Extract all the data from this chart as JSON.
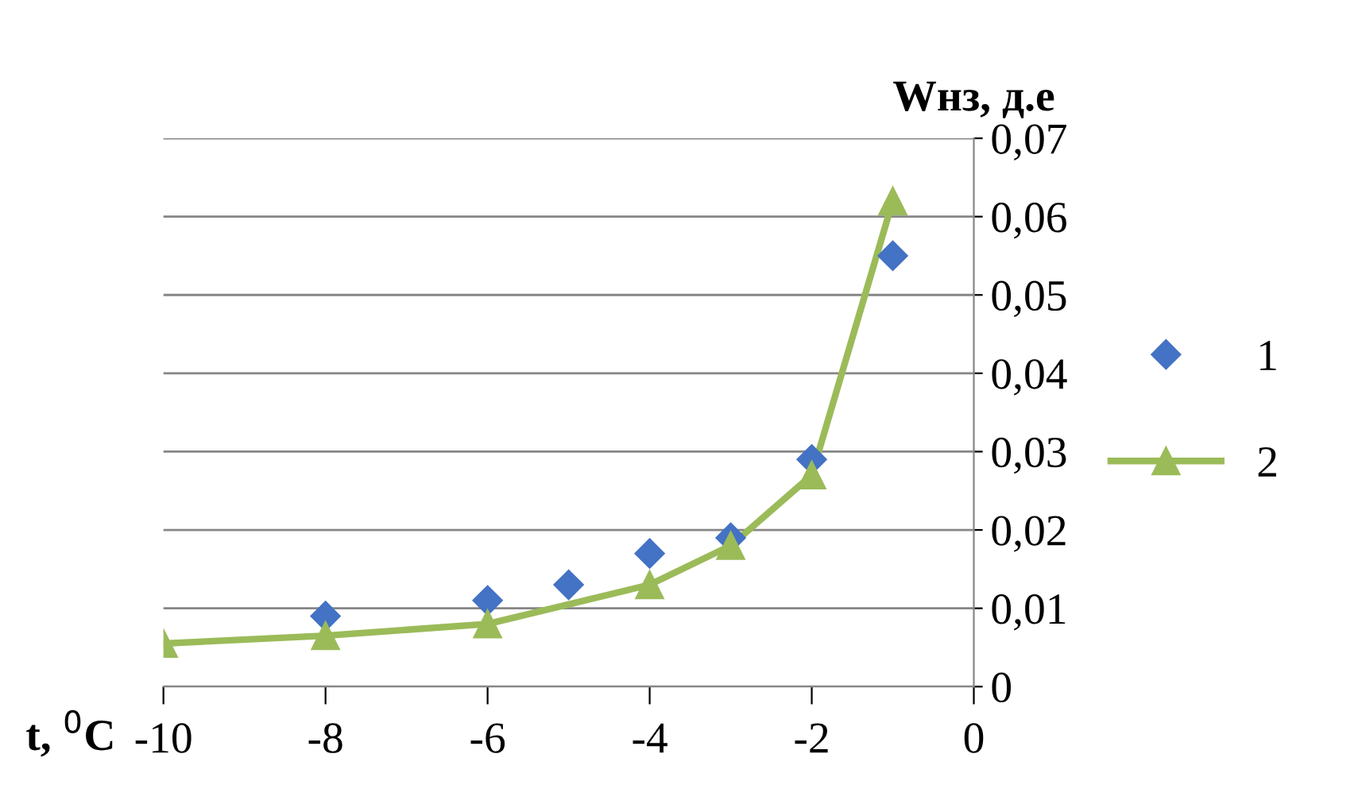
{
  "chart_data": {
    "type": "scatter",
    "xlabel": "t, $^{0}$C",
    "ylabel": "Wнз, д.е",
    "xlim": [
      -10,
      0
    ],
    "xticks": [
      -10,
      -8,
      -6,
      -4,
      -2,
      0
    ],
    "ylim": [
      0,
      0.07
    ],
    "yticks": [
      {
        "value": 0,
        "label": "0"
      },
      {
        "value": 0.01,
        "label": "0,01"
      },
      {
        "value": 0.02,
        "label": "0,02"
      },
      {
        "value": 0.03,
        "label": "0,03"
      },
      {
        "value": 0.04,
        "label": "0,04"
      },
      {
        "value": 0.05,
        "label": "0,05"
      },
      {
        "value": 0.06,
        "label": "0,06"
      },
      {
        "value": 0.07,
        "label": "0,07"
      }
    ],
    "grid": "y",
    "legend": "right",
    "series": [
      {
        "name": "1",
        "marker": "diamond",
        "color": "#4472c4",
        "x": [
          -8,
          -6,
          -5,
          -4,
          -3,
          -2,
          -1
        ],
        "values": [
          0.009,
          0.011,
          0.013,
          0.017,
          0.019,
          0.029,
          0.055
        ]
      },
      {
        "name": "2",
        "type": "line",
        "marker": "triangle",
        "color": "#9bbb59",
        "x": [
          -10,
          -8,
          -6,
          -4,
          -3,
          -2,
          -1
        ],
        "values": [
          0.0055,
          0.0065,
          0.008,
          0.013,
          0.018,
          0.027,
          0.062
        ]
      }
    ]
  }
}
